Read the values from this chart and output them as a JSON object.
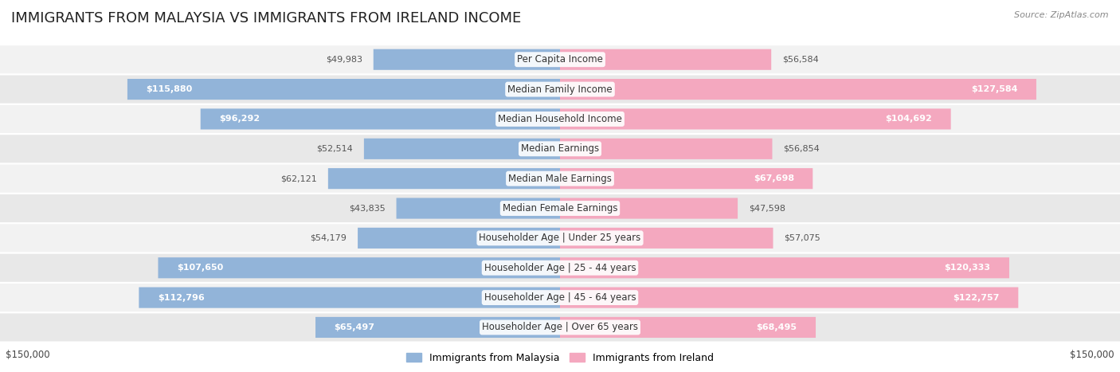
{
  "title": "IMMIGRANTS FROM MALAYSIA VS IMMIGRANTS FROM IRELAND INCOME",
  "source": "Source: ZipAtlas.com",
  "categories": [
    "Per Capita Income",
    "Median Family Income",
    "Median Household Income",
    "Median Earnings",
    "Median Male Earnings",
    "Median Female Earnings",
    "Householder Age | Under 25 years",
    "Householder Age | 25 - 44 years",
    "Householder Age | 45 - 64 years",
    "Householder Age | Over 65 years"
  ],
  "malaysia_values": [
    49983,
    115880,
    96292,
    52514,
    62121,
    43835,
    54179,
    107650,
    112796,
    65497
  ],
  "ireland_values": [
    56584,
    127584,
    104692,
    56854,
    67698,
    47598,
    57075,
    120333,
    122757,
    68495
  ],
  "malaysia_color": "#92b4d9",
  "ireland_color": "#f4a8bf",
  "malaysia_dark_color": "#6a90be",
  "ireland_dark_color": "#e8698a",
  "max_value": 150000,
  "bg_color": "#ffffff",
  "row_bg_light": "#f2f2f2",
  "row_bg_dark": "#e8e8e8",
  "label_fontsize": 8.5,
  "title_fontsize": 13,
  "value_fontsize": 8,
  "source_fontsize": 8,
  "axis_label_fontsize": 8.5,
  "threshold_inside": 65000
}
